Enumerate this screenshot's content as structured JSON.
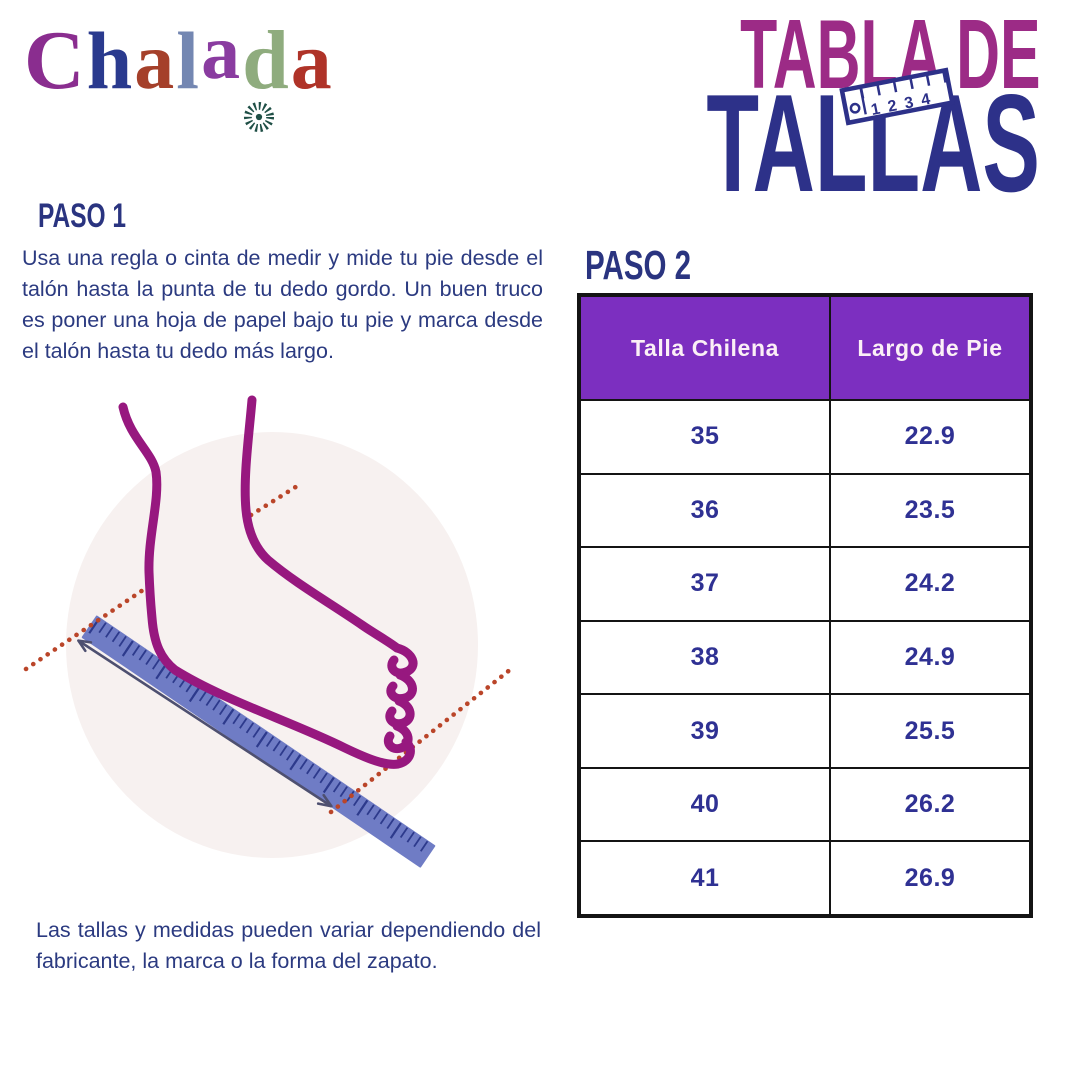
{
  "brand": {
    "name": "Chalada",
    "letters": [
      {
        "char": "C",
        "color": "#8A2D8F"
      },
      {
        "char": "h",
        "color": "#2A3A8E"
      },
      {
        "char": "a",
        "color": "#A5402A"
      },
      {
        "char": "l",
        "color": "#7487B2"
      },
      {
        "char": "a",
        "color": "#8A3CA0"
      },
      {
        "char": "d",
        "color": "#8FAC7E",
        "ornament": "flower"
      },
      {
        "char": "a",
        "color": "#AF3328"
      }
    ]
  },
  "title": {
    "line1": "TABLA DE",
    "line2": "TALLAS",
    "ruler_numbers": [
      "1",
      "2",
      "3",
      "4"
    ]
  },
  "step1": {
    "heading": "PASO 1",
    "body": "Usa una regla o cinta de medir y mide tu pie desde el talón hasta la punta de tu dedo gordo. Un buen truco es poner una hoja de papel bajo tu pie y marca desde el talón hasta tu dedo más largo."
  },
  "step2": {
    "heading": "PASO 2"
  },
  "disclaimer": "Las tallas y medidas pueden variar dependiendo del fabricante, la marca o la forma del zapato.",
  "chart_data": {
    "type": "table",
    "columns": [
      "Talla Chilena",
      "Largo de Pie"
    ],
    "rows": [
      [
        "35",
        "22.9"
      ],
      [
        "36",
        "23.5"
      ],
      [
        "37",
        "24.2"
      ],
      [
        "38",
        "24.9"
      ],
      [
        "39",
        "25.5"
      ],
      [
        "40",
        "26.2"
      ],
      [
        "41",
        "26.9"
      ]
    ]
  },
  "colors": {
    "title_magenta": "#9C2B86",
    "title_navy": "#2D3189",
    "heading_navy": "#2A3480",
    "body_navy": "#2B3A80",
    "table_header_bg": "#7C2FC0",
    "table_header_text": "#FBEFF6",
    "table_value_navy": "#2F3193",
    "table_border": "#141414",
    "illustration_circle": "#F7F1F0",
    "foot_outline": "#97187F",
    "ruler_blue": "#6F7CC5",
    "ruler_ticks": "#2D3A8C",
    "dotted_line": "#BA4529",
    "arrow": "#4E5070"
  }
}
